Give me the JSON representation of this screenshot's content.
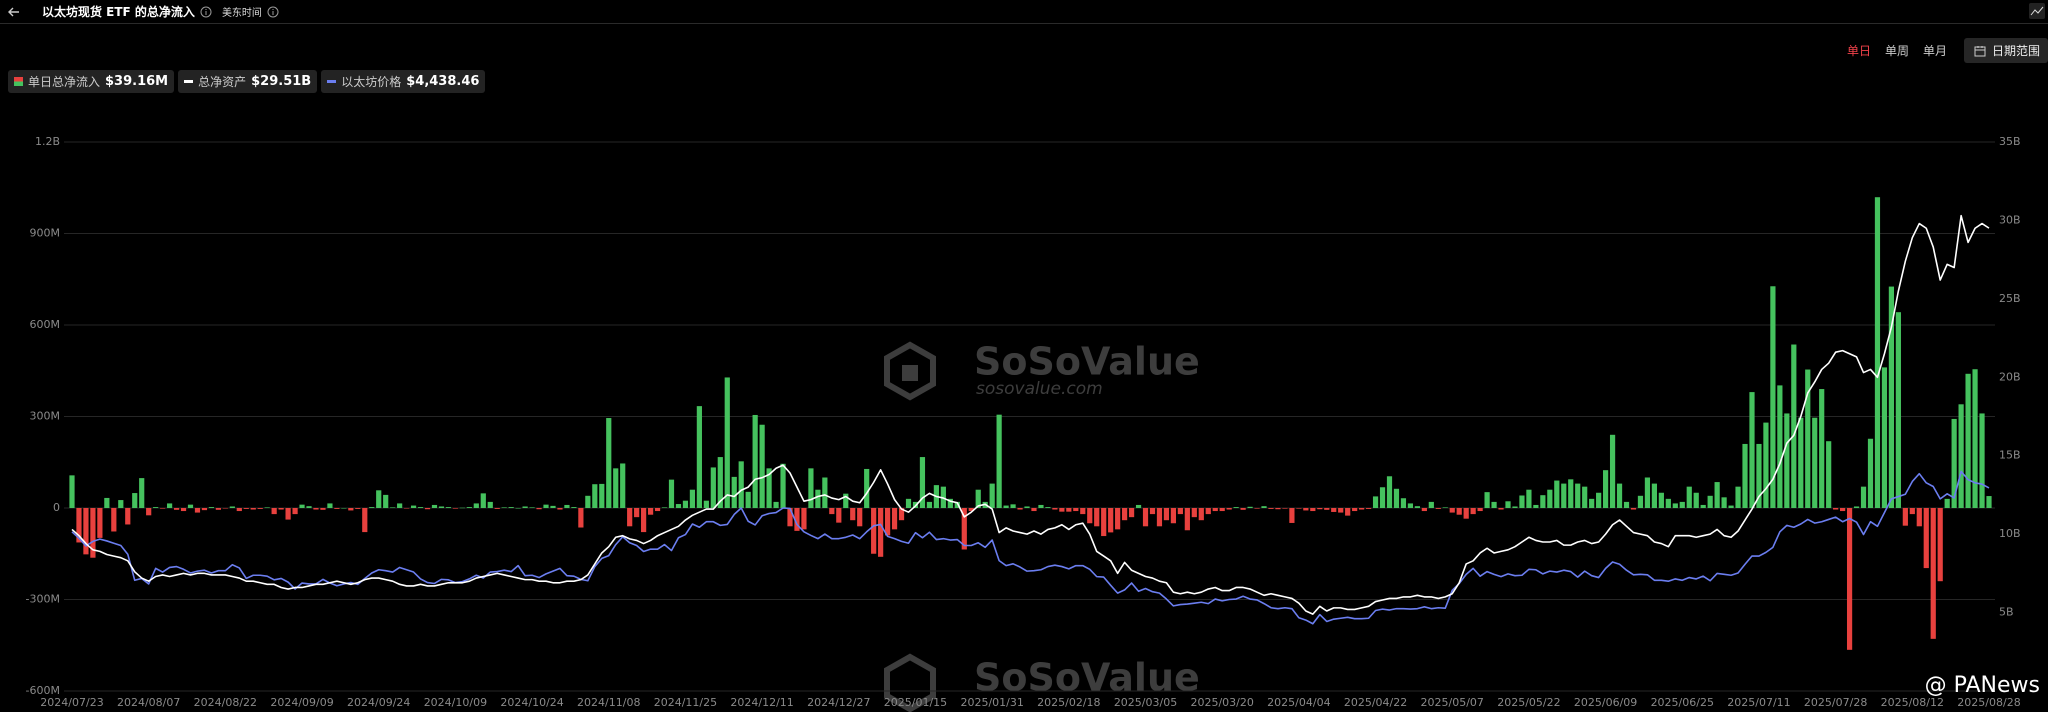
{
  "ui": {
    "periods": [
      "单日",
      "单周",
      "单月"
    ],
    "active_period": 0,
    "date_range": "日期范围",
    "watermark": "SoSoValue",
    "watermark_url": "sosovalue.com",
    "credit": "@ PANews"
  },
  "chart_data": {
    "type": "bar",
    "title": "以太坊现货 ETF 的总净流入",
    "timezone": "美东时间",
    "grid": true,
    "legend": "top-left",
    "categories": [
      "2024/07/23",
      null,
      null,
      null,
      null,
      null,
      null,
      null,
      null,
      null,
      null,
      "2024/08/07",
      null,
      null,
      null,
      null,
      null,
      null,
      null,
      null,
      null,
      null,
      "2024/08/22",
      null,
      null,
      null,
      null,
      null,
      null,
      null,
      null,
      null,
      null,
      "2024/09/09",
      null,
      null,
      null,
      null,
      null,
      null,
      null,
      null,
      null,
      null,
      "2024/09/24",
      null,
      null,
      null,
      null,
      null,
      null,
      null,
      null,
      null,
      null,
      "2024/10/09",
      null,
      null,
      null,
      null,
      null,
      null,
      null,
      null,
      null,
      null,
      "2024/10/24",
      null,
      null,
      null,
      null,
      null,
      null,
      null,
      null,
      null,
      null,
      "2024/11/08",
      null,
      null,
      null,
      null,
      null,
      null,
      null,
      null,
      null,
      null,
      "2024/11/25",
      null,
      null,
      null,
      null,
      null,
      null,
      null,
      null,
      null,
      null,
      "2024/12/11",
      null,
      null,
      null,
      null,
      null,
      null,
      null,
      null,
      null,
      null,
      "2024/12/27",
      null,
      null,
      null,
      null,
      null,
      null,
      null,
      null,
      null,
      null,
      "2025/01/15",
      null,
      null,
      null,
      null,
      null,
      null,
      null,
      null,
      null,
      null,
      "2025/01/31",
      null,
      null,
      null,
      null,
      null,
      null,
      null,
      null,
      null,
      null,
      "2025/02/18",
      null,
      null,
      null,
      null,
      null,
      null,
      null,
      null,
      null,
      null,
      "2025/03/05",
      null,
      null,
      null,
      null,
      null,
      null,
      null,
      null,
      null,
      null,
      "2025/03/20",
      null,
      null,
      null,
      null,
      null,
      null,
      null,
      null,
      null,
      null,
      "2025/04/04",
      null,
      null,
      null,
      null,
      null,
      null,
      null,
      null,
      null,
      null,
      "2025/04/22",
      null,
      null,
      null,
      null,
      null,
      null,
      null,
      null,
      null,
      null,
      "2025/05/07",
      null,
      null,
      null,
      null,
      null,
      null,
      null,
      null,
      null,
      null,
      "2025/05/22",
      null,
      null,
      null,
      null,
      null,
      null,
      null,
      null,
      null,
      null,
      "2025/06/09",
      null,
      null,
      null,
      null,
      null,
      null,
      null,
      null,
      null,
      null,
      "2025/06/25",
      null,
      null,
      null,
      null,
      null,
      null,
      null,
      null,
      null,
      null,
      "2025/07/11",
      null,
      null,
      null,
      null,
      null,
      null,
      null,
      null,
      null,
      null,
      "2025/07/28",
      null,
      null,
      null,
      null,
      null,
      null,
      null,
      null,
      null,
      null,
      "2025/08/12",
      null,
      null,
      null,
      null,
      null,
      null,
      null,
      null,
      null,
      null,
      "2025/08/28"
    ],
    "series": [
      {
        "name": "单日总净流入",
        "type": "bar",
        "color": "#45c25e",
        "negative_color": "#e8413e",
        "latest_label": "$39.16M",
        "values": [
          107,
          -113,
          -152,
          -163,
          -98,
          33,
          -77,
          26,
          -54,
          49,
          98,
          -24,
          3,
          -2,
          15,
          -6,
          -10,
          11,
          -15,
          -7,
          3,
          -6,
          -1,
          5,
          -10,
          -3,
          -5,
          -3,
          2,
          -20,
          -5,
          -38,
          -20,
          11,
          6,
          -5,
          -6,
          15,
          -3,
          0,
          -8,
          -3,
          -79,
          3,
          58,
          43,
          2,
          15,
          -1,
          8,
          3,
          -4,
          10,
          5,
          3,
          -2,
          1,
          3,
          15,
          48,
          20,
          -3,
          2,
          3,
          0,
          5,
          2,
          -4,
          11,
          7,
          -5,
          10,
          3,
          -64,
          40,
          78,
          79,
          295,
          130,
          146,
          -60,
          -30,
          -79,
          -22,
          -10,
          2,
          93,
          13,
          24,
          60,
          334,
          24,
          133,
          167,
          428,
          102,
          153,
          53,
          305,
          273,
          130,
          20,
          145,
          -60,
          -75,
          -70,
          130,
          60,
          100,
          -20,
          -48,
          47,
          -40,
          -60,
          128,
          -150,
          -160,
          -90,
          -70,
          -40,
          30,
          20,
          167,
          20,
          75,
          70,
          30,
          20,
          -136,
          -10,
          60,
          20,
          80,
          306,
          8,
          12,
          -5,
          5,
          -10,
          10,
          3,
          -5,
          -12,
          -12,
          -10,
          -20,
          -50,
          -60,
          -92,
          -80,
          -70,
          -40,
          -30,
          10,
          -60,
          -20,
          -60,
          -40,
          -50,
          -20,
          -73,
          -30,
          -40,
          -20,
          -10,
          -10,
          -5,
          3,
          -6,
          4,
          -2,
          6,
          -3,
          -4,
          -2,
          -49,
          -2,
          -8,
          -10,
          -4,
          -6,
          -13,
          -15,
          -25,
          -10,
          -5,
          -3,
          38,
          68,
          104,
          63,
          32,
          15,
          6,
          -10,
          20,
          -3,
          2,
          -15,
          -22,
          -35,
          -20,
          -10,
          52,
          20,
          -5,
          22,
          5,
          41,
          60,
          10,
          42,
          60,
          90,
          80,
          94,
          80,
          70,
          30,
          50,
          124,
          240,
          80,
          20,
          -5,
          40,
          100,
          80,
          50,
          30,
          15,
          20,
          70,
          50,
          10,
          40,
          85,
          35,
          8,
          70,
          210,
          380,
          210,
          280,
          727,
          402,
          310,
          536,
          296,
          454,
          296,
          390,
          219,
          -5,
          -10,
          -465,
          5,
          70,
          227,
          1019,
          461,
          726,
          642,
          -58,
          -20,
          -60,
          -197,
          -429,
          -240,
          30,
          292,
          340,
          440,
          455,
          310,
          39.16
        ]
      },
      {
        "name": "总净资产",
        "type": "line",
        "axis": "y2",
        "color": "#ffffff",
        "latest_label": "$29.51B",
        "values": [
          10.3,
          9.9,
          9.4,
          9.0,
          8.9,
          8.7,
          8.6,
          8.5,
          8.3,
          7.6,
          7.2,
          7.0,
          7.3,
          7.4,
          7.3,
          7.4,
          7.5,
          7.4,
          7.5,
          7.5,
          7.4,
          7.4,
          7.4,
          7.3,
          7.2,
          7.0,
          7.0,
          6.9,
          6.8,
          6.8,
          6.6,
          6.5,
          6.6,
          6.6,
          6.7,
          6.8,
          6.8,
          6.9,
          7.0,
          6.9,
          6.8,
          6.9,
          7.1,
          7.2,
          7.2,
          7.1,
          7.0,
          6.8,
          6.7,
          6.7,
          6.8,
          6.7,
          6.7,
          6.8,
          6.9,
          6.9,
          6.9,
          7.0,
          7.2,
          7.3,
          7.4,
          7.5,
          7.4,
          7.3,
          7.2,
          7.1,
          7.1,
          7.0,
          7.0,
          6.9,
          6.9,
          7.0,
          7.0,
          7.1,
          7.4,
          8.1,
          8.8,
          9.2,
          9.8,
          9.9,
          9.7,
          9.6,
          9.4,
          9.6,
          9.9,
          10.1,
          10.3,
          10.5,
          10.9,
          11.2,
          11.4,
          11.6,
          11.6,
          12.1,
          12.5,
          12.4,
          12.8,
          13.0,
          13.5,
          13.6,
          13.8,
          14.2,
          14.4,
          13.9,
          13.0,
          12.1,
          12.2,
          12.4,
          12.5,
          12.3,
          12.2,
          12.4,
          12.1,
          12.0,
          12.6,
          13.3,
          14.1,
          13.2,
          12.2,
          11.6,
          11.4,
          11.8,
          12.3,
          12.6,
          12.4,
          12.3,
          12.1,
          12.0,
          11.1,
          11.4,
          11.8,
          11.9,
          11.6,
          10.1,
          10.4,
          10.2,
          10.1,
          10.0,
          10.2,
          10.0,
          10.3,
          10.4,
          10.6,
          10.3,
          10.6,
          10.7,
          10.0,
          8.9,
          8.6,
          8.3,
          7.5,
          8.2,
          7.7,
          7.5,
          7.3,
          7.2,
          7.0,
          6.9,
          6.3,
          6.2,
          6.3,
          6.2,
          6.3,
          6.5,
          6.6,
          6.4,
          6.4,
          6.6,
          6.6,
          6.5,
          6.3,
          6.1,
          6.2,
          6.1,
          6.0,
          5.9,
          5.6,
          5.1,
          4.9,
          5.4,
          5.1,
          5.3,
          5.3,
          5.2,
          5.2,
          5.3,
          5.4,
          5.7,
          5.8,
          5.9,
          5.9,
          6.0,
          6.0,
          6.1,
          6.0,
          6.0,
          5.9,
          6.0,
          6.2,
          6.9,
          8.1,
          8.3,
          8.8,
          9.1,
          8.8,
          8.9,
          9.0,
          9.2,
          9.5,
          9.8,
          9.6,
          9.5,
          9.5,
          9.6,
          9.3,
          9.3,
          9.5,
          9.6,
          9.4,
          9.5,
          10.0,
          10.6,
          10.9,
          10.5,
          10.1,
          10.0,
          9.9,
          9.5,
          9.4,
          9.2,
          9.9,
          9.9,
          9.9,
          9.8,
          9.9,
          10.0,
          10.3,
          9.9,
          9.8,
          10.2,
          10.9,
          11.6,
          12.4,
          12.9,
          13.5,
          14.5,
          15.8,
          16.3,
          17.5,
          19.0,
          19.7,
          20.5,
          20.9,
          21.6,
          21.7,
          21.5,
          21.3,
          20.3,
          20.5,
          20.0,
          21.5,
          23.2,
          25.5,
          27.4,
          28.9,
          29.8,
          29.5,
          28.3,
          26.2,
          27.2,
          27.0,
          30.3,
          28.6,
          29.5,
          29.8,
          29.51
        ]
      },
      {
        "name": "以太坊价格",
        "type": "line",
        "axis": "y3",
        "color": "#6b7ef0",
        "latest_label": "$4,438.46",
        "values": [
          3480,
          3340,
          3170,
          3270,
          3320,
          3280,
          3230,
          3180,
          2990,
          2420,
          2460,
          2340,
          2680,
          2600,
          2700,
          2720,
          2660,
          2580,
          2620,
          2640,
          2580,
          2630,
          2630,
          2760,
          2690,
          2460,
          2530,
          2530,
          2510,
          2430,
          2460,
          2380,
          2230,
          2360,
          2340,
          2340,
          2440,
          2360,
          2300,
          2340,
          2370,
          2330,
          2460,
          2580,
          2650,
          2630,
          2600,
          2700,
          2650,
          2600,
          2450,
          2370,
          2350,
          2440,
          2430,
          2370,
          2390,
          2450,
          2530,
          2470,
          2600,
          2610,
          2640,
          2610,
          2740,
          2520,
          2530,
          2480,
          2560,
          2620,
          2680,
          2520,
          2510,
          2440,
          2410,
          2720,
          2900,
          2960,
          3200,
          3370,
          3240,
          3180,
          3050,
          3100,
          3100,
          3200,
          3070,
          3350,
          3420,
          3650,
          3580,
          3700,
          3700,
          3620,
          3640,
          3860,
          4000,
          3710,
          3630,
          3830,
          3880,
          3900,
          4000,
          3990,
          3640,
          3480,
          3400,
          3330,
          3430,
          3330,
          3330,
          3360,
          3410,
          3330,
          3480,
          3610,
          3640,
          3380,
          3330,
          3270,
          3230,
          3460,
          3350,
          3470,
          3310,
          3330,
          3300,
          3310,
          3180,
          3180,
          3240,
          3140,
          3300,
          2850,
          2740,
          2780,
          2710,
          2620,
          2630,
          2650,
          2720,
          2750,
          2720,
          2670,
          2740,
          2740,
          2660,
          2500,
          2490,
          2310,
          2140,
          2210,
          2360,
          2180,
          2240,
          2170,
          2140,
          2010,
          1860,
          1890,
          1900,
          1920,
          1940,
          1910,
          2010,
          1970,
          2000,
          2010,
          2070,
          2010,
          1990,
          1910,
          1820,
          1800,
          1820,
          1800,
          1600,
          1550,
          1470,
          1670,
          1520,
          1570,
          1590,
          1610,
          1580,
          1580,
          1590,
          1760,
          1790,
          1770,
          1800,
          1800,
          1790,
          1800,
          1840,
          1800,
          1820,
          1810,
          2200,
          2350,
          2550,
          2680,
          2510,
          2610,
          2550,
          2500,
          2560,
          2520,
          2530,
          2660,
          2650,
          2560,
          2620,
          2600,
          2640,
          2610,
          2490,
          2620,
          2520,
          2480,
          2680,
          2820,
          2770,
          2640,
          2540,
          2550,
          2540,
          2420,
          2420,
          2400,
          2450,
          2420,
          2480,
          2450,
          2510,
          2410,
          2570,
          2550,
          2530,
          2580,
          2770,
          2950,
          2950,
          3030,
          3140,
          3480,
          3620,
          3580,
          3650,
          3750,
          3670,
          3700,
          3750,
          3800,
          3700,
          3770,
          3690,
          3420,
          3700,
          3600,
          3900,
          4200,
          4250,
          4300,
          4580,
          4750,
          4550,
          4470,
          4200,
          4310,
          4220,
          4800,
          4620,
          4550,
          4520,
          4438.46
        ]
      }
    ],
    "ylim": [
      -600,
      1200
    ],
    "yticks": [
      {
        "value": -600,
        "label": "-600M"
      },
      {
        "value": -300,
        "label": "-300M"
      },
      0,
      {
        "value": 300,
        "label": "300M"
      },
      {
        "value": 600,
        "label": "600M"
      },
      {
        "value": 900,
        "label": "900M"
      },
      {
        "value": 1200,
        "label": "1.2B"
      }
    ],
    "y2lim": [
      0,
      35
    ],
    "y2ticks": [
      {
        "value": 5,
        "label": "5B"
      },
      {
        "value": 10,
        "label": "10B"
      },
      {
        "value": 15,
        "label": "15B"
      },
      {
        "value": 20,
        "label": "20B"
      },
      {
        "value": 25,
        "label": "25B"
      },
      {
        "value": 30,
        "label": "30B"
      },
      {
        "value": 35,
        "label": "35B"
      }
    ],
    "y3lim": [
      0,
      12000
    ]
  }
}
